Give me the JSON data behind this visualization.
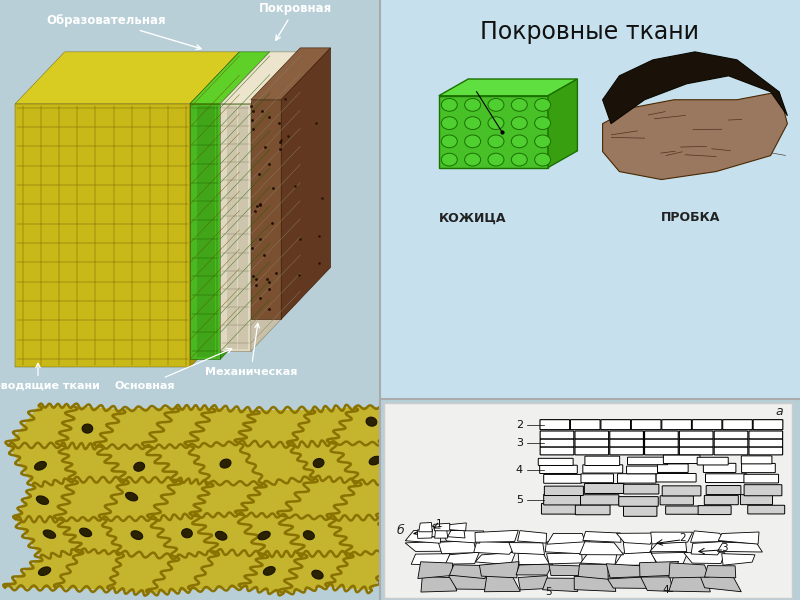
{
  "title": "Покровные ткани",
  "label_obrazov": "Образовательная",
  "label_pokrov": "Покровная",
  "label_mekhan": "Механическая",
  "label_osnov": "Основная",
  "label_provod": "Проводящие ткани",
  "label_kozhica": "КОЖИЦА",
  "label_probka": "ПРОБКА",
  "label_a": "а",
  "label_b": "б",
  "right_bg": "#c5dce8",
  "right_bg2": "#c8e0d0",
  "bottom_bg": "#f0f0f0"
}
